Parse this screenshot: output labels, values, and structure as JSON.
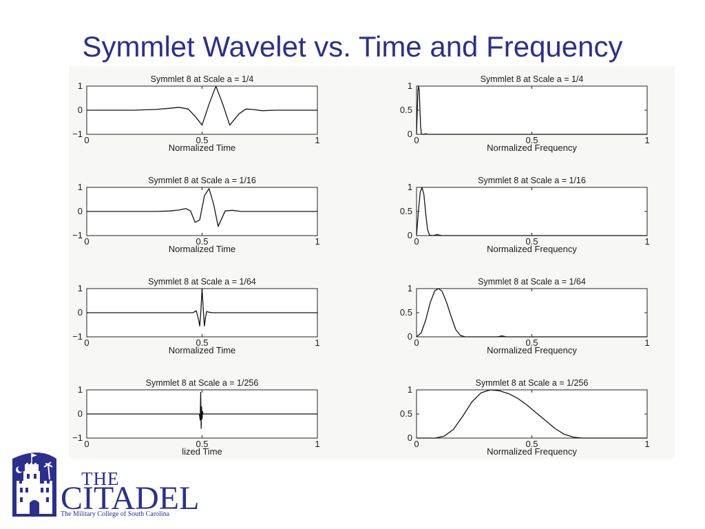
{
  "slide": {
    "title": "Symmlet Wavelet vs. Time and Frequency"
  },
  "logo": {
    "the": "THE",
    "citadel": "CITADEL",
    "tagline": "The Military College of South Carolina",
    "color": "#2b2f8f"
  },
  "chart_data": [
    {
      "type": "line",
      "panel": "time",
      "scale": "1/4",
      "title": "Symmlet 8 at Scale a = 1/4",
      "xlabel": "Normalized Time",
      "ylabel": "",
      "xlim": [
        0,
        1
      ],
      "ylim": [
        -1,
        1
      ],
      "x_ticks": [
        "0",
        "0.5",
        "1"
      ],
      "y_ticks": [
        "1",
        "0",
        "−1"
      ],
      "series": [
        {
          "x": [
            0,
            0.2,
            0.3,
            0.36,
            0.4,
            0.44,
            0.47,
            0.5,
            0.53,
            0.56,
            0.59,
            0.62,
            0.66,
            0.69,
            0.72,
            0.76,
            0.82,
            1.0
          ],
          "y": [
            0,
            0,
            0.03,
            0.08,
            0.12,
            0.05,
            -0.25,
            -0.62,
            0.25,
            1.0,
            0.25,
            -0.62,
            -0.15,
            0.05,
            0.03,
            -0.02,
            0,
            0
          ]
        }
      ]
    },
    {
      "type": "line",
      "panel": "frequency",
      "scale": "1/4",
      "title": "Symmlet 8 at Scale a = 1/4",
      "xlabel": "Normalized Frequency",
      "ylabel": "",
      "xlim": [
        0,
        1
      ],
      "ylim": [
        0,
        1
      ],
      "x_ticks": [
        "0",
        "0.5",
        "1"
      ],
      "y_ticks": [
        "1",
        "0.5",
        "0"
      ],
      "series": [
        {
          "x": [
            0,
            0.003,
            0.006,
            0.009,
            0.012,
            0.015,
            0.018,
            0.021,
            0.025,
            0.03,
            0.04,
            0.05,
            0.06,
            1.0
          ],
          "y": [
            0,
            0.45,
            0.9,
            1.0,
            0.9,
            0.5,
            0.15,
            0.02,
            0,
            0,
            0.01,
            0,
            0,
            0
          ]
        }
      ]
    },
    {
      "type": "line",
      "panel": "time",
      "scale": "1/16",
      "title": "Symmlet 8 at Scale a = 1/16",
      "xlabel": "Normalized Time",
      "ylabel": "",
      "xlim": [
        0,
        1
      ],
      "ylim": [
        -1,
        1
      ],
      "x_ticks": [
        "0",
        "0.5",
        "1"
      ],
      "y_ticks": [
        "1",
        "0",
        "−1"
      ],
      "series": [
        {
          "x": [
            0,
            0.3,
            0.36,
            0.4,
            0.43,
            0.45,
            0.47,
            0.49,
            0.51,
            0.53,
            0.55,
            0.57,
            0.6,
            0.63,
            0.67,
            1.0
          ],
          "y": [
            0,
            0,
            0.02,
            0.06,
            0.12,
            0.02,
            -0.45,
            -0.35,
            0.65,
            0.95,
            0.3,
            -0.62,
            0.02,
            0.05,
            0.0,
            0
          ]
        }
      ]
    },
    {
      "type": "line",
      "panel": "frequency",
      "scale": "1/16",
      "title": "Symmlet 8 at Scale a = 1/16",
      "xlabel": "Normalized Frequency",
      "ylabel": "",
      "xlim": [
        0,
        1
      ],
      "ylim": [
        0,
        1
      ],
      "x_ticks": [
        "0",
        "0.5",
        "1"
      ],
      "y_ticks": [
        "1",
        "0.5",
        "0"
      ],
      "series": [
        {
          "x": [
            0,
            0.008,
            0.016,
            0.024,
            0.032,
            0.04,
            0.048,
            0.056,
            0.07,
            0.09,
            0.11,
            0.15,
            1.0
          ],
          "y": [
            0,
            0.5,
            0.9,
            1.0,
            0.85,
            0.45,
            0.12,
            0.01,
            0,
            0.02,
            0,
            0,
            0
          ]
        }
      ]
    },
    {
      "type": "line",
      "panel": "time",
      "scale": "1/64",
      "title": "Symmlet 8 at Scale a = 1/64",
      "xlabel": "Normalized Time",
      "ylabel": "",
      "xlim": [
        0,
        1
      ],
      "ylim": [
        -1,
        1
      ],
      "x_ticks": [
        "0",
        "0.5",
        "1"
      ],
      "y_ticks": [
        "1",
        "0",
        "−1"
      ],
      "series": [
        {
          "x": [
            0,
            0.46,
            0.475,
            0.485,
            0.49,
            0.495,
            0.5,
            0.505,
            0.51,
            0.515,
            0.52,
            0.53,
            0.545,
            1.0
          ],
          "y": [
            0,
            0,
            0.08,
            -0.3,
            -0.55,
            0.1,
            1.0,
            0.15,
            -0.55,
            -0.2,
            0.05,
            0.02,
            0,
            0
          ]
        }
      ]
    },
    {
      "type": "line",
      "panel": "frequency",
      "scale": "1/64",
      "title": "Symmlet 8 at Scale a = 1/64",
      "xlabel": "Normalized Frequency",
      "ylabel": "",
      "xlim": [
        0,
        1
      ],
      "ylim": [
        0,
        1
      ],
      "x_ticks": [
        "0",
        "0.5",
        "1"
      ],
      "y_ticks": [
        "1",
        "0.5",
        "0"
      ],
      "series": [
        {
          "x": [
            0,
            0.02,
            0.04,
            0.06,
            0.08,
            0.095,
            0.11,
            0.13,
            0.15,
            0.17,
            0.19,
            0.21,
            0.35,
            0.37,
            0.39,
            0.6,
            1.0
          ],
          "y": [
            0,
            0.08,
            0.35,
            0.72,
            0.96,
            1.0,
            0.95,
            0.72,
            0.42,
            0.15,
            0.03,
            0,
            0,
            0.02,
            0,
            0,
            0
          ]
        }
      ]
    },
    {
      "type": "line",
      "panel": "time",
      "scale": "1/256",
      "title": "Symmlet 8 at Scale a = 1/256",
      "xlabel": "lized Time",
      "ylabel": "",
      "xlim": [
        0,
        1
      ],
      "ylim": [
        -1,
        1
      ],
      "x_ticks": [
        "0",
        "0.5",
        "1"
      ],
      "y_ticks": [
        "1",
        "0",
        "−1"
      ],
      "series": [
        {
          "x": [
            0,
            0.488,
            0.492,
            0.494,
            0.496,
            0.498,
            0.5,
            0.502,
            0.504,
            0.508,
            1.0
          ],
          "y": [
            0,
            0,
            -0.25,
            0.9,
            -0.6,
            0.3,
            -0.2,
            0.1,
            0,
            0,
            0
          ]
        }
      ]
    },
    {
      "type": "line",
      "panel": "frequency",
      "scale": "1/256",
      "title": "Symmlet 8 at Scale a = 1/256",
      "xlabel": "Normalized Frequency",
      "ylabel": "",
      "xlim": [
        0,
        1
      ],
      "ylim": [
        0,
        1
      ],
      "x_ticks": [
        "0",
        "0.5",
        "1"
      ],
      "y_ticks": [
        "1",
        "0.5",
        "0"
      ],
      "series": [
        {
          "x": [
            0,
            0.08,
            0.12,
            0.16,
            0.2,
            0.24,
            0.28,
            0.32,
            0.36,
            0.4,
            0.44,
            0.48,
            0.52,
            0.56,
            0.6,
            0.64,
            0.68,
            0.72,
            0.76,
            0.8,
            1.0
          ],
          "y": [
            0,
            0,
            0.04,
            0.18,
            0.45,
            0.75,
            0.94,
            1.0,
            0.98,
            0.92,
            0.82,
            0.68,
            0.52,
            0.36,
            0.2,
            0.08,
            0.02,
            0,
            0,
            0,
            0
          ]
        }
      ]
    }
  ]
}
